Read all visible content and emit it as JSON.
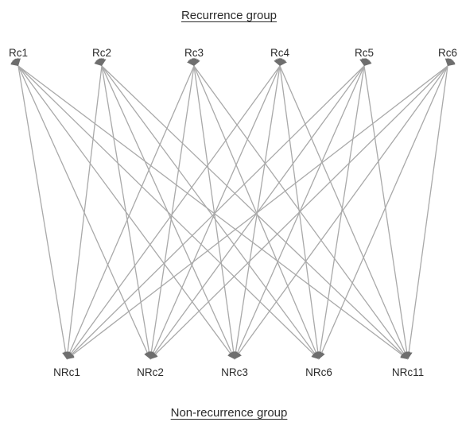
{
  "titles": {
    "top": "Recurrence group",
    "bottom": "Non-recurrence group"
  },
  "nodes": {
    "top": [
      "Rc1",
      "Rc2",
      "Rc3",
      "Rc4",
      "Rc5",
      "Rc6"
    ],
    "bottom": [
      "NRc1",
      "NRc2",
      "NRc3",
      "NRc6",
      "NRc11"
    ]
  },
  "edges": "complete-bipartite",
  "colors": {
    "edge": "#a9a9a9",
    "text": "#2b2b2b"
  }
}
